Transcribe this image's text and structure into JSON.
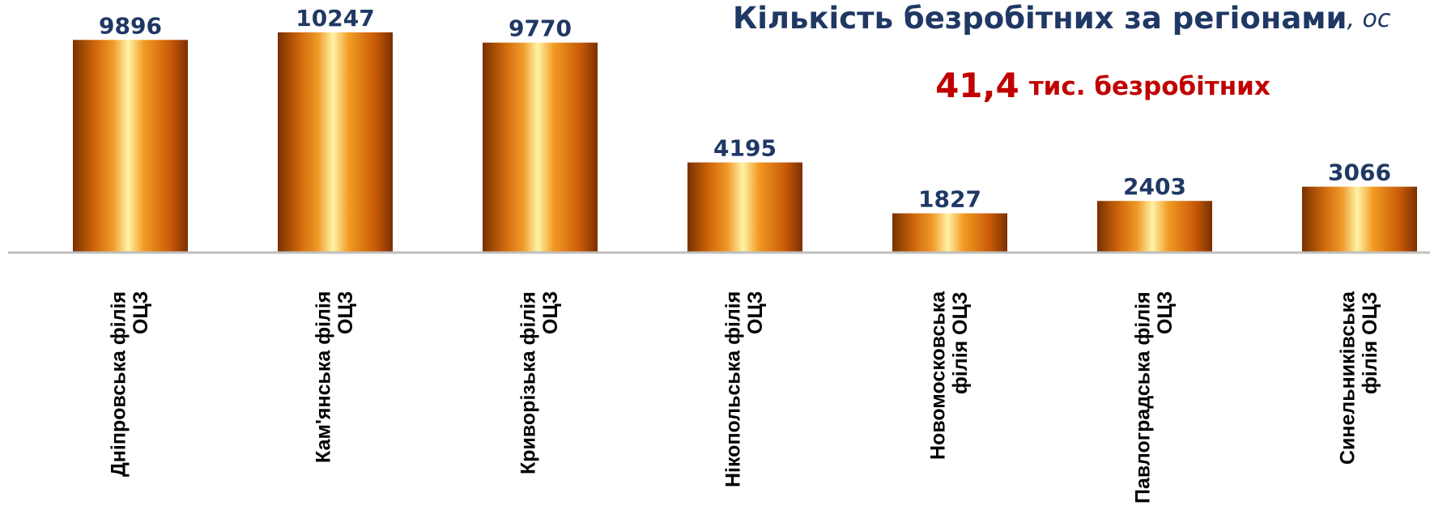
{
  "chart_data": {
    "type": "bar",
    "title": "Кількість безробітних за регіонами",
    "title_suffix": ", ос",
    "subtitle_number": "41,4",
    "subtitle_text": "тис. безробітних",
    "categories": [
      "Дніпровська філія ОЦЗ",
      "Кам'янська філія ОЦЗ",
      "Криворізька філія ОЦЗ",
      "Нікопольська філія ОЦЗ",
      "Новомосковська філія ОЦЗ",
      "Павлоградська філія ОЦЗ",
      "Синельниківська філія ОЦЗ"
    ],
    "values": [
      9896,
      10247,
      9770,
      4195,
      1827,
      2403,
      3066
    ],
    "ylim": [
      0,
      11000
    ]
  }
}
